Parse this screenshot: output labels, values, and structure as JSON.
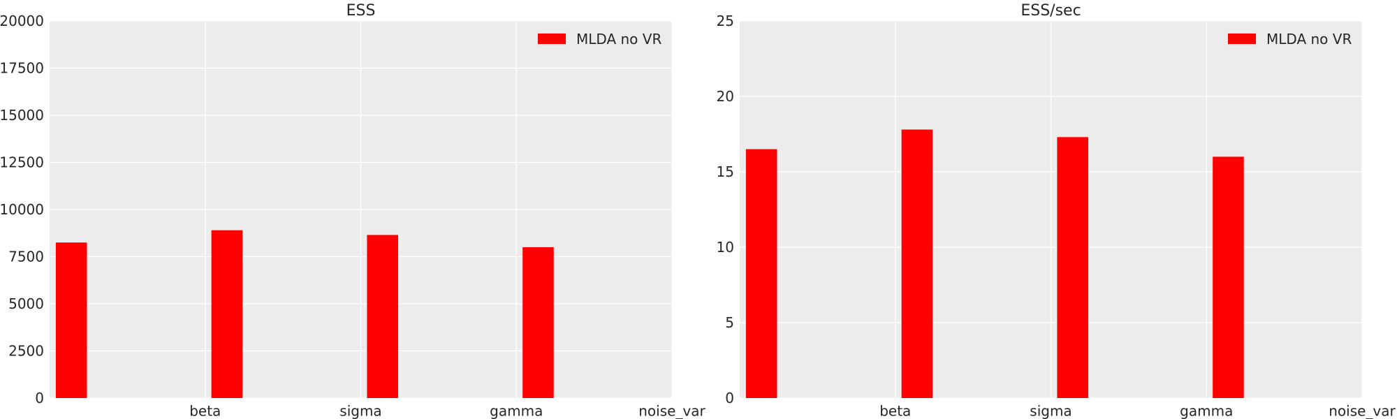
{
  "chart_data": [
    {
      "type": "bar",
      "title": "ESS",
      "xlabel": "",
      "ylabel": "",
      "categories": [
        "beta",
        "sigma",
        "gamma",
        "noise_var"
      ],
      "series": [
        {
          "name": "MLDA no VR",
          "color": "#ff0000",
          "values": [
            8250,
            8900,
            8650,
            8000
          ]
        }
      ],
      "ylim": [
        0,
        20000
      ],
      "yticks": [
        0,
        2500,
        5000,
        7500,
        10000,
        12500,
        15000,
        17500,
        20000
      ],
      "grid": true,
      "legend_position": "top-right"
    },
    {
      "type": "bar",
      "title": "ESS/sec",
      "xlabel": "",
      "ylabel": "",
      "categories": [
        "beta",
        "sigma",
        "gamma",
        "noise_var"
      ],
      "series": [
        {
          "name": "MLDA no VR",
          "color": "#ff0000",
          "values": [
            16.5,
            17.8,
            17.3,
            16.0
          ]
        }
      ],
      "ylim": [
        0,
        25
      ],
      "yticks": [
        0,
        5,
        10,
        15,
        20,
        25
      ],
      "grid": true,
      "legend_position": "top-right"
    }
  ]
}
